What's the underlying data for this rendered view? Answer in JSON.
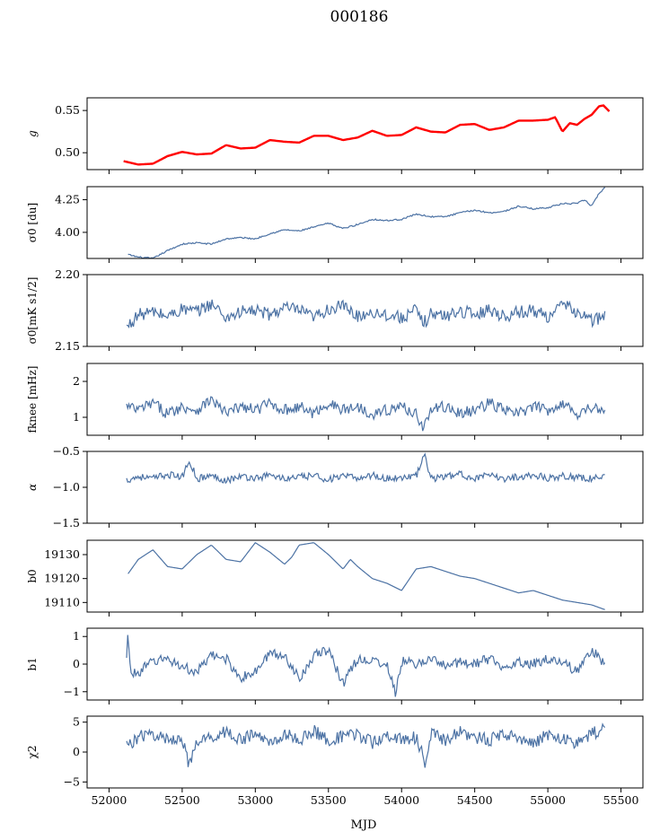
{
  "figure": {
    "title": "000186",
    "xlabel": "MJD"
  },
  "chart_data": [
    {
      "type": "line",
      "ylabel": "g",
      "ylim": [
        0.48,
        0.565
      ],
      "yticks": [
        0.5,
        0.55
      ],
      "ytick_labels": [
        "0.50",
        "0.55"
      ],
      "xlim": [
        51850,
        55650
      ],
      "xticks": [
        52000,
        52500,
        53000,
        53500,
        54000,
        54500,
        55000,
        55500
      ],
      "xtick_labels": [],
      "colors": [
        "#4c72a4",
        "#ff0000"
      ],
      "series": [
        {
          "x": [
            52100,
            52150,
            52200,
            52300,
            52400,
            52500,
            52600,
            52700,
            52800,
            52900,
            53000,
            53100,
            53200,
            53300,
            53400,
            53500,
            53600,
            53700,
            53800,
            53900,
            54000,
            54100,
            54200,
            54300,
            54400,
            54500,
            54600,
            54700,
            54800,
            54900,
            55000,
            55050,
            55100,
            55150,
            55200,
            55250,
            55300,
            55350,
            55380,
            55420
          ],
          "y": [
            0.49,
            0.488,
            0.486,
            0.487,
            0.496,
            0.501,
            0.498,
            0.499,
            0.509,
            0.505,
            0.506,
            0.515,
            0.513,
            0.512,
            0.52,
            0.52,
            0.515,
            0.518,
            0.526,
            0.52,
            0.521,
            0.53,
            0.525,
            0.524,
            0.533,
            0.534,
            0.527,
            0.53,
            0.538,
            0.538,
            0.539,
            0.542,
            0.525,
            0.535,
            0.533,
            0.54,
            0.545,
            0.555,
            0.556,
            0.549
          ]
        }
      ]
    },
    {
      "type": "line",
      "ylabel": "σ0 [du]",
      "ylim": [
        3.8,
        4.35
      ],
      "yticks": [
        4.0,
        4.25
      ],
      "ytick_labels": [
        "4.00",
        "4.25"
      ],
      "xlim": [
        51850,
        55650
      ],
      "xticks": [
        52000,
        52500,
        53000,
        53500,
        54000,
        54500,
        55000,
        55500
      ],
      "xtick_labels": [],
      "colors": [
        "#4c72a4"
      ],
      "series": [
        {
          "x": [
            52130,
            52200,
            52300,
            52400,
            52500,
            52600,
            52700,
            52800,
            52900,
            53000,
            53100,
            53200,
            53300,
            53400,
            53500,
            53600,
            53700,
            53800,
            53900,
            54000,
            54100,
            54200,
            54300,
            54400,
            54500,
            54600,
            54700,
            54800,
            54900,
            55000,
            55100,
            55200,
            55250,
            55300,
            55350,
            55390
          ],
          "y": [
            3.83,
            3.81,
            3.8,
            3.86,
            3.91,
            3.92,
            3.91,
            3.95,
            3.96,
            3.95,
            3.99,
            4.02,
            4.01,
            4.04,
            4.07,
            4.03,
            4.06,
            4.1,
            4.09,
            4.1,
            4.14,
            4.12,
            4.12,
            4.15,
            4.17,
            4.15,
            4.16,
            4.2,
            4.18,
            4.19,
            4.22,
            4.22,
            4.25,
            4.2,
            4.3,
            4.34
          ]
        }
      ]
    },
    {
      "type": "line",
      "ylabel": "σ0[mK s1/2]",
      "ylim": [
        2.15,
        2.2
      ],
      "yticks": [
        2.15,
        2.2
      ],
      "ytick_labels": [
        "2.15",
        "2.20"
      ],
      "xlim": [
        51850,
        55650
      ],
      "xticks": [
        52000,
        52500,
        53000,
        53500,
        54000,
        54500,
        55000,
        55500
      ],
      "xtick_labels": [],
      "colors": [
        "#4c72a4"
      ],
      "series": [
        {
          "x": [
            52120,
            52200,
            52300,
            52400,
            52500,
            52600,
            52700,
            52800,
            52900,
            53000,
            53100,
            53200,
            53300,
            53400,
            53500,
            53600,
            53700,
            53800,
            53900,
            54000,
            54100,
            54150,
            54200,
            54300,
            54400,
            54500,
            54600,
            54700,
            54800,
            54900,
            55000,
            55100,
            55200,
            55300,
            55390
          ],
          "y": [
            2.163,
            2.172,
            2.174,
            2.171,
            2.176,
            2.174,
            2.18,
            2.17,
            2.174,
            2.175,
            2.172,
            2.177,
            2.175,
            2.17,
            2.176,
            2.178,
            2.171,
            2.174,
            2.172,
            2.17,
            2.175,
            2.166,
            2.173,
            2.171,
            2.175,
            2.172,
            2.176,
            2.171,
            2.174,
            2.175,
            2.171,
            2.179,
            2.174,
            2.168,
            2.171
          ]
        }
      ]
    },
    {
      "type": "line",
      "ylabel": "fknee [mHz]",
      "ylim": [
        0.5,
        2.5
      ],
      "yticks": [
        1,
        2
      ],
      "ytick_labels": [
        "1",
        "2"
      ],
      "xlim": [
        51850,
        55650
      ],
      "xticks": [
        52000,
        52500,
        53000,
        53500,
        54000,
        54500,
        55000,
        55500
      ],
      "xtick_labels": [],
      "colors": [
        "#4c72a4"
      ],
      "series": [
        {
          "x": [
            52120,
            52200,
            52300,
            52400,
            52500,
            52600,
            52700,
            52800,
            52900,
            53000,
            53100,
            53200,
            53300,
            53400,
            53500,
            53600,
            53700,
            53800,
            53900,
            54000,
            54100,
            54150,
            54200,
            54300,
            54400,
            54500,
            54600,
            54700,
            54800,
            54900,
            55000,
            55100,
            55200,
            55300,
            55390
          ],
          "y": [
            1.3,
            1.2,
            1.4,
            1.1,
            1.3,
            1.2,
            1.5,
            1.1,
            1.3,
            1.2,
            1.4,
            1.2,
            1.3,
            1.1,
            1.4,
            1.2,
            1.3,
            1.1,
            1.2,
            1.3,
            1.1,
            0.7,
            1.2,
            1.3,
            1.1,
            1.2,
            1.4,
            1.2,
            1.1,
            1.3,
            1.2,
            1.4,
            1.1,
            1.3,
            1.1
          ]
        }
      ]
    },
    {
      "type": "line",
      "ylabel": "α",
      "ylim": [
        -1.5,
        -0.5
      ],
      "yticks": [
        -1.5,
        -1.0,
        -0.5
      ],
      "ytick_labels": [
        "−1.5",
        "−1.0",
        "−0.5"
      ],
      "xlim": [
        51850,
        55650
      ],
      "xticks": [
        52000,
        52500,
        53000,
        53500,
        54000,
        54500,
        55000,
        55500
      ],
      "xtick_labels": [],
      "colors": [
        "#4c72a4"
      ],
      "series": [
        {
          "x": [
            52120,
            52200,
            52300,
            52400,
            52500,
            52550,
            52600,
            52700,
            52800,
            52900,
            53000,
            53100,
            53200,
            53300,
            53400,
            53500,
            53600,
            53700,
            53800,
            53900,
            54000,
            54100,
            54160,
            54200,
            54300,
            54400,
            54500,
            54600,
            54700,
            54800,
            54900,
            55000,
            55100,
            55200,
            55300,
            55390
          ],
          "y": [
            -0.9,
            -0.85,
            -0.88,
            -0.82,
            -0.86,
            -0.62,
            -0.88,
            -0.84,
            -0.9,
            -0.85,
            -0.87,
            -0.83,
            -0.88,
            -0.86,
            -0.84,
            -0.89,
            -0.85,
            -0.87,
            -0.83,
            -0.88,
            -0.86,
            -0.84,
            -0.55,
            -0.88,
            -0.85,
            -0.82,
            -0.87,
            -0.84,
            -0.88,
            -0.85,
            -0.83,
            -0.87,
            -0.84,
            -0.86,
            -0.88,
            -0.85
          ]
        }
      ]
    },
    {
      "type": "line",
      "ylabel": "b0",
      "ylim": [
        19106,
        19136
      ],
      "yticks": [
        19110,
        19120,
        19130
      ],
      "ytick_labels": [
        "19110",
        "19120",
        "19130"
      ],
      "xlim": [
        51850,
        55650
      ],
      "xticks": [
        52000,
        52500,
        53000,
        53500,
        54000,
        54500,
        55000,
        55500
      ],
      "xtick_labels": [],
      "colors": [
        "#4c72a4"
      ],
      "series": [
        {
          "x": [
            52130,
            52200,
            52300,
            52400,
            52500,
            52600,
            52700,
            52800,
            52900,
            53000,
            53100,
            53200,
            53250,
            53300,
            53400,
            53500,
            53600,
            53650,
            53700,
            53800,
            53900,
            54000,
            54100,
            54200,
            54300,
            54400,
            54500,
            54600,
            54700,
            54800,
            54900,
            55000,
            55100,
            55200,
            55300,
            55390
          ],
          "y": [
            19122,
            19128,
            19132,
            19125,
            19124,
            19130,
            19134,
            19128,
            19127,
            19135,
            19131,
            19126,
            19129,
            19134,
            19135,
            19130,
            19124,
            19128,
            19125,
            19120,
            19118,
            19115,
            19124,
            19125,
            19123,
            19121,
            19120,
            19118,
            19116,
            19114,
            19115,
            19113,
            19111,
            19110,
            19109,
            19107
          ]
        }
      ]
    },
    {
      "type": "line",
      "ylabel": "b1",
      "ylim": [
        -1.3,
        1.3
      ],
      "yticks": [
        -1,
        0,
        1
      ],
      "ytick_labels": [
        "−1",
        "0",
        "1"
      ],
      "xlim": [
        51850,
        55650
      ],
      "xticks": [
        52000,
        52500,
        53000,
        53500,
        54000,
        54500,
        55000,
        55500
      ],
      "xtick_labels": [],
      "colors": [
        "#4c72a4"
      ],
      "series": [
        {
          "x": [
            52120,
            52130,
            52150,
            52200,
            52300,
            52400,
            52500,
            52600,
            52700,
            52800,
            52900,
            53000,
            53100,
            53200,
            53300,
            53400,
            53500,
            53600,
            53700,
            53800,
            53900,
            53960,
            54000,
            54100,
            54200,
            54300,
            54400,
            54500,
            54600,
            54700,
            54800,
            54900,
            55000,
            55100,
            55200,
            55300,
            55390
          ],
          "y": [
            0.1,
            1.2,
            -0.4,
            -0.3,
            0.1,
            0.2,
            -0.1,
            -0.3,
            0.3,
            0.2,
            -0.5,
            -0.3,
            0.4,
            0.3,
            -0.5,
            0.3,
            0.5,
            -0.7,
            0.2,
            0.1,
            0.0,
            -1.1,
            0.1,
            0.0,
            0.2,
            -0.1,
            0.1,
            0.0,
            0.2,
            -0.1,
            0.1,
            0.0,
            0.2,
            0.1,
            -0.3,
            0.5,
            0.0
          ]
        }
      ]
    },
    {
      "type": "line",
      "ylabel": "χ2",
      "ylim": [
        -6,
        6
      ],
      "yticks": [
        -5,
        0,
        5
      ],
      "ytick_labels": [
        "−5",
        "0",
        "5"
      ],
      "xlim": [
        51850,
        55650
      ],
      "xticks": [
        52000,
        52500,
        53000,
        53500,
        54000,
        54500,
        55000,
        55500
      ],
      "xtick_labels": [
        "52000",
        "52500",
        "53000",
        "53500",
        "54000",
        "54500",
        "55000",
        "55500"
      ],
      "colors": [
        "#4c72a4"
      ],
      "series": [
        {
          "x": [
            52120,
            52200,
            52300,
            52400,
            52500,
            52550,
            52600,
            52700,
            52800,
            52900,
            53000,
            53100,
            53200,
            53300,
            53400,
            53500,
            53600,
            53700,
            53800,
            53900,
            54000,
            54100,
            54170,
            54200,
            54300,
            54400,
            54500,
            54600,
            54700,
            54800,
            54900,
            55000,
            55100,
            55200,
            55300,
            55390
          ],
          "y": [
            1.0,
            2.5,
            3.0,
            2.0,
            2.5,
            -2.5,
            1.5,
            2.5,
            3.5,
            2.0,
            3.0,
            1.5,
            3.0,
            2.0,
            3.5,
            2.0,
            2.5,
            3.0,
            1.5,
            3.0,
            2.0,
            2.5,
            -2.5,
            3.0,
            2.0,
            3.5,
            2.5,
            2.0,
            3.0,
            2.5,
            1.5,
            3.0,
            2.0,
            1.5,
            3.0,
            4.0
          ]
        }
      ]
    }
  ]
}
